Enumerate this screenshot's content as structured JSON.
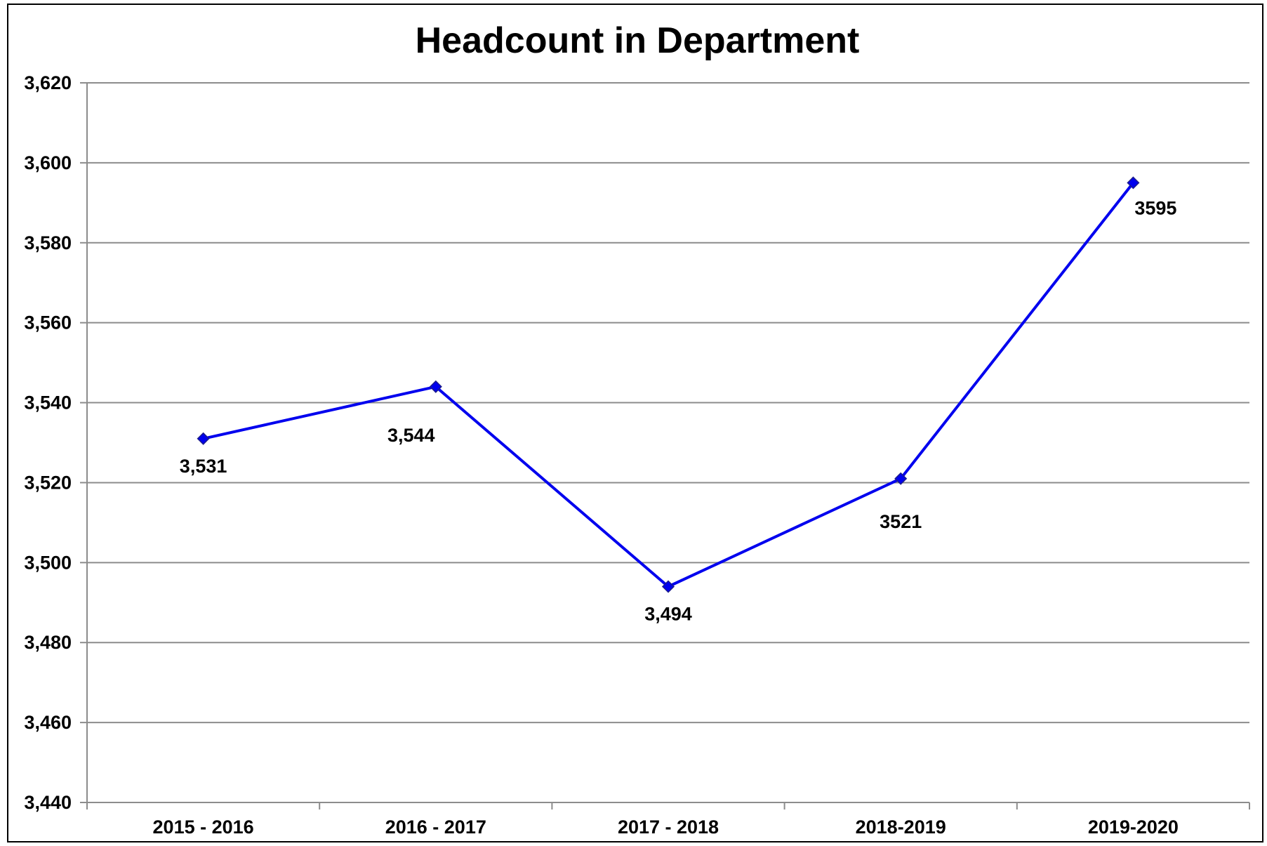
{
  "chart_data": {
    "type": "line",
    "title": "Headcount in Department",
    "xlabel": "",
    "ylabel": "",
    "categories": [
      "2015 - 2016",
      "2016 - 2017",
      "2017 - 2018",
      "2018-2019",
      "2019-2020"
    ],
    "series": [
      {
        "values": [
          3531,
          3544,
          3494,
          3521,
          3595
        ],
        "data_labels": [
          "3,531",
          "3,544",
          "3,494",
          "3521",
          "3595"
        ],
        "color": "#0000ee",
        "marker": "diamond"
      }
    ],
    "ylim": [
      3440,
      3620
    ],
    "yticks": [
      3440,
      3460,
      3480,
      3500,
      3520,
      3540,
      3560,
      3580,
      3600,
      3620
    ],
    "ytick_labels": [
      "3,440",
      "3,460",
      "3,480",
      "3,500",
      "3,520",
      "3,540",
      "3,560",
      "3,580",
      "3,600",
      "3,620"
    ],
    "grid": true,
    "legend": "none"
  }
}
